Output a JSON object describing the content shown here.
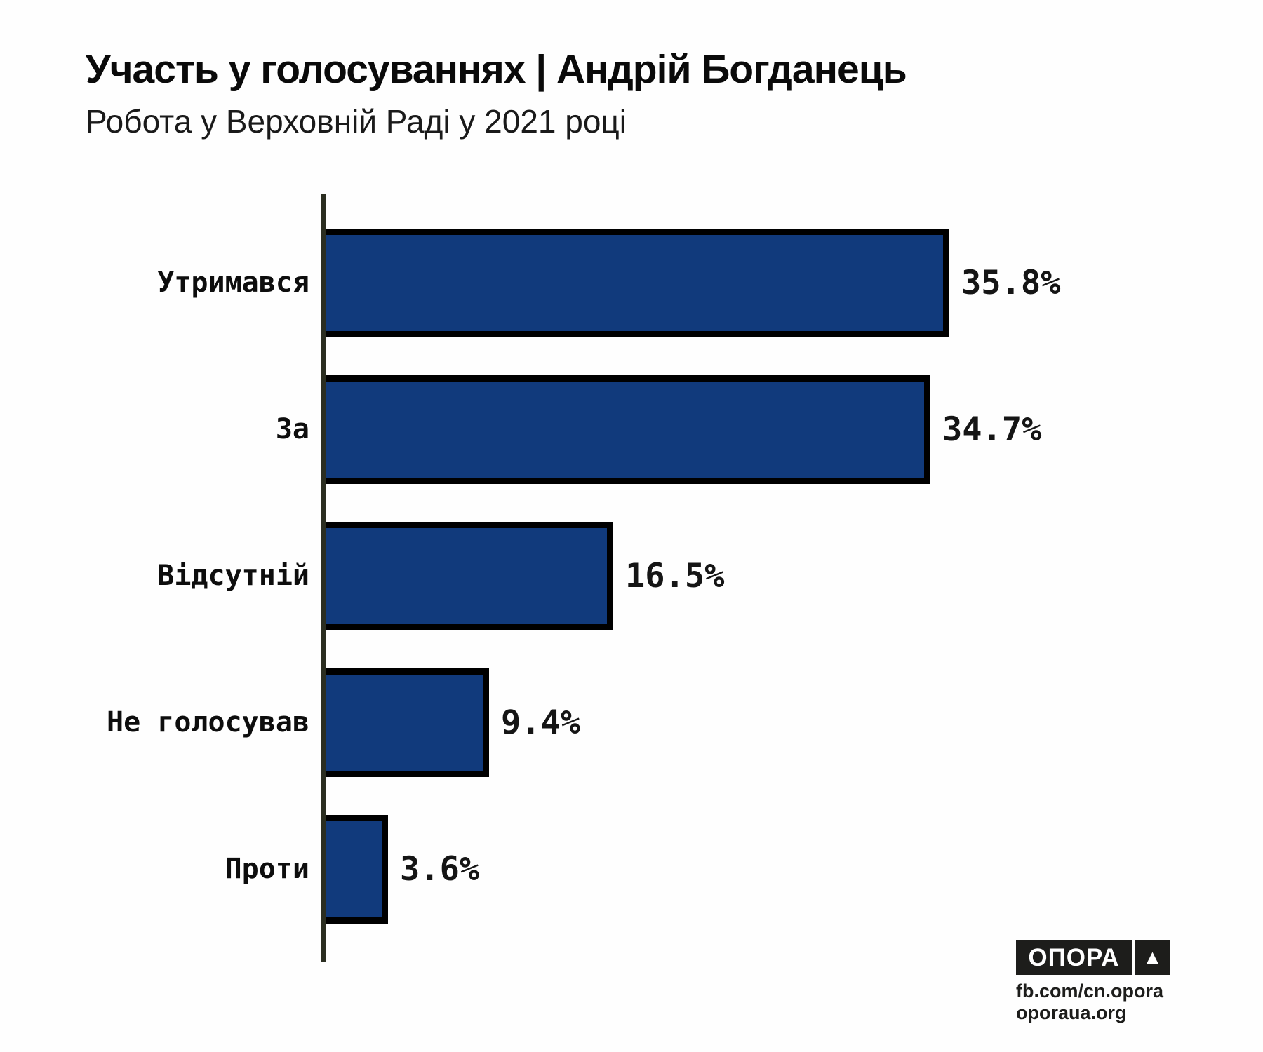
{
  "page": {
    "background": "#fefefe"
  },
  "header": {
    "title": "Участь у голосуваннях | Андрій Богданець",
    "subtitle": "Робота у Верховній Раді у 2021 році"
  },
  "chart_data": {
    "type": "bar",
    "orientation": "horizontal",
    "title": "Участь у голосуваннях | Андрій Богданець",
    "subtitle": "Робота у Верховній Раді у 2021 році",
    "categories": [
      "Утримався",
      "За",
      "Відсутній",
      "Не голосував",
      "Проти"
    ],
    "values": [
      35.8,
      34.7,
      16.5,
      9.4,
      3.6
    ],
    "value_labels": [
      "35.8%",
      "34.7%",
      "16.5%",
      "9.4%",
      "3.6%"
    ],
    "xlim": [
      0,
      40
    ],
    "grid": false,
    "legend": false,
    "bar_color": "#113a7c",
    "bar_border_color": "#000000",
    "axis_color": "#2b2e21"
  },
  "footer": {
    "logo_text": "ОПОРА",
    "logo_triangle": "▲",
    "logo_bg": "#1d1d1b",
    "links": [
      "fb.com/cn.opora",
      "oporaua.org"
    ]
  }
}
